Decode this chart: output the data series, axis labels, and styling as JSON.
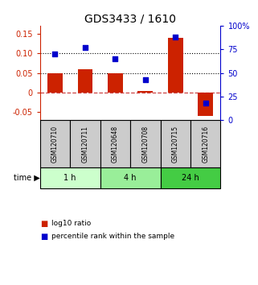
{
  "title": "GDS3433 / 1610",
  "samples": [
    "GSM120710",
    "GSM120711",
    "GSM120648",
    "GSM120708",
    "GSM120715",
    "GSM120716"
  ],
  "log10_ratio": [
    0.05,
    0.06,
    0.05,
    0.005,
    0.14,
    -0.06
  ],
  "percentile_rank": [
    70,
    77,
    65,
    43,
    88,
    18
  ],
  "time_groups": [
    {
      "label": "1 h",
      "span": [
        0,
        2
      ],
      "color": "#ccffcc"
    },
    {
      "label": "4 h",
      "span": [
        2,
        4
      ],
      "color": "#99ee99"
    },
    {
      "label": "24 h",
      "span": [
        4,
        6
      ],
      "color": "#44cc44"
    }
  ],
  "ylim_left": [
    -0.07,
    0.17
  ],
  "ylim_right": [
    0,
    100
  ],
  "yticks_left": [
    -0.05,
    0.0,
    0.05,
    0.1,
    0.15
  ],
  "ytick_labels_left": [
    "-0.05",
    "0",
    "0.05",
    "0.10",
    "0.15"
  ],
  "yticks_right": [
    0,
    25,
    50,
    75,
    100
  ],
  "ytick_labels_right": [
    "0",
    "25",
    "50",
    "75",
    "100%"
  ],
  "bar_color": "#cc2200",
  "dot_color": "#0000cc",
  "hline_zero_color": "#cc4444",
  "hline_dot_color": "#000000",
  "background_color": "#ffffff",
  "sample_box_color": "#cccccc",
  "title_fontsize": 10,
  "tick_fontsize": 7,
  "bar_width": 0.5
}
